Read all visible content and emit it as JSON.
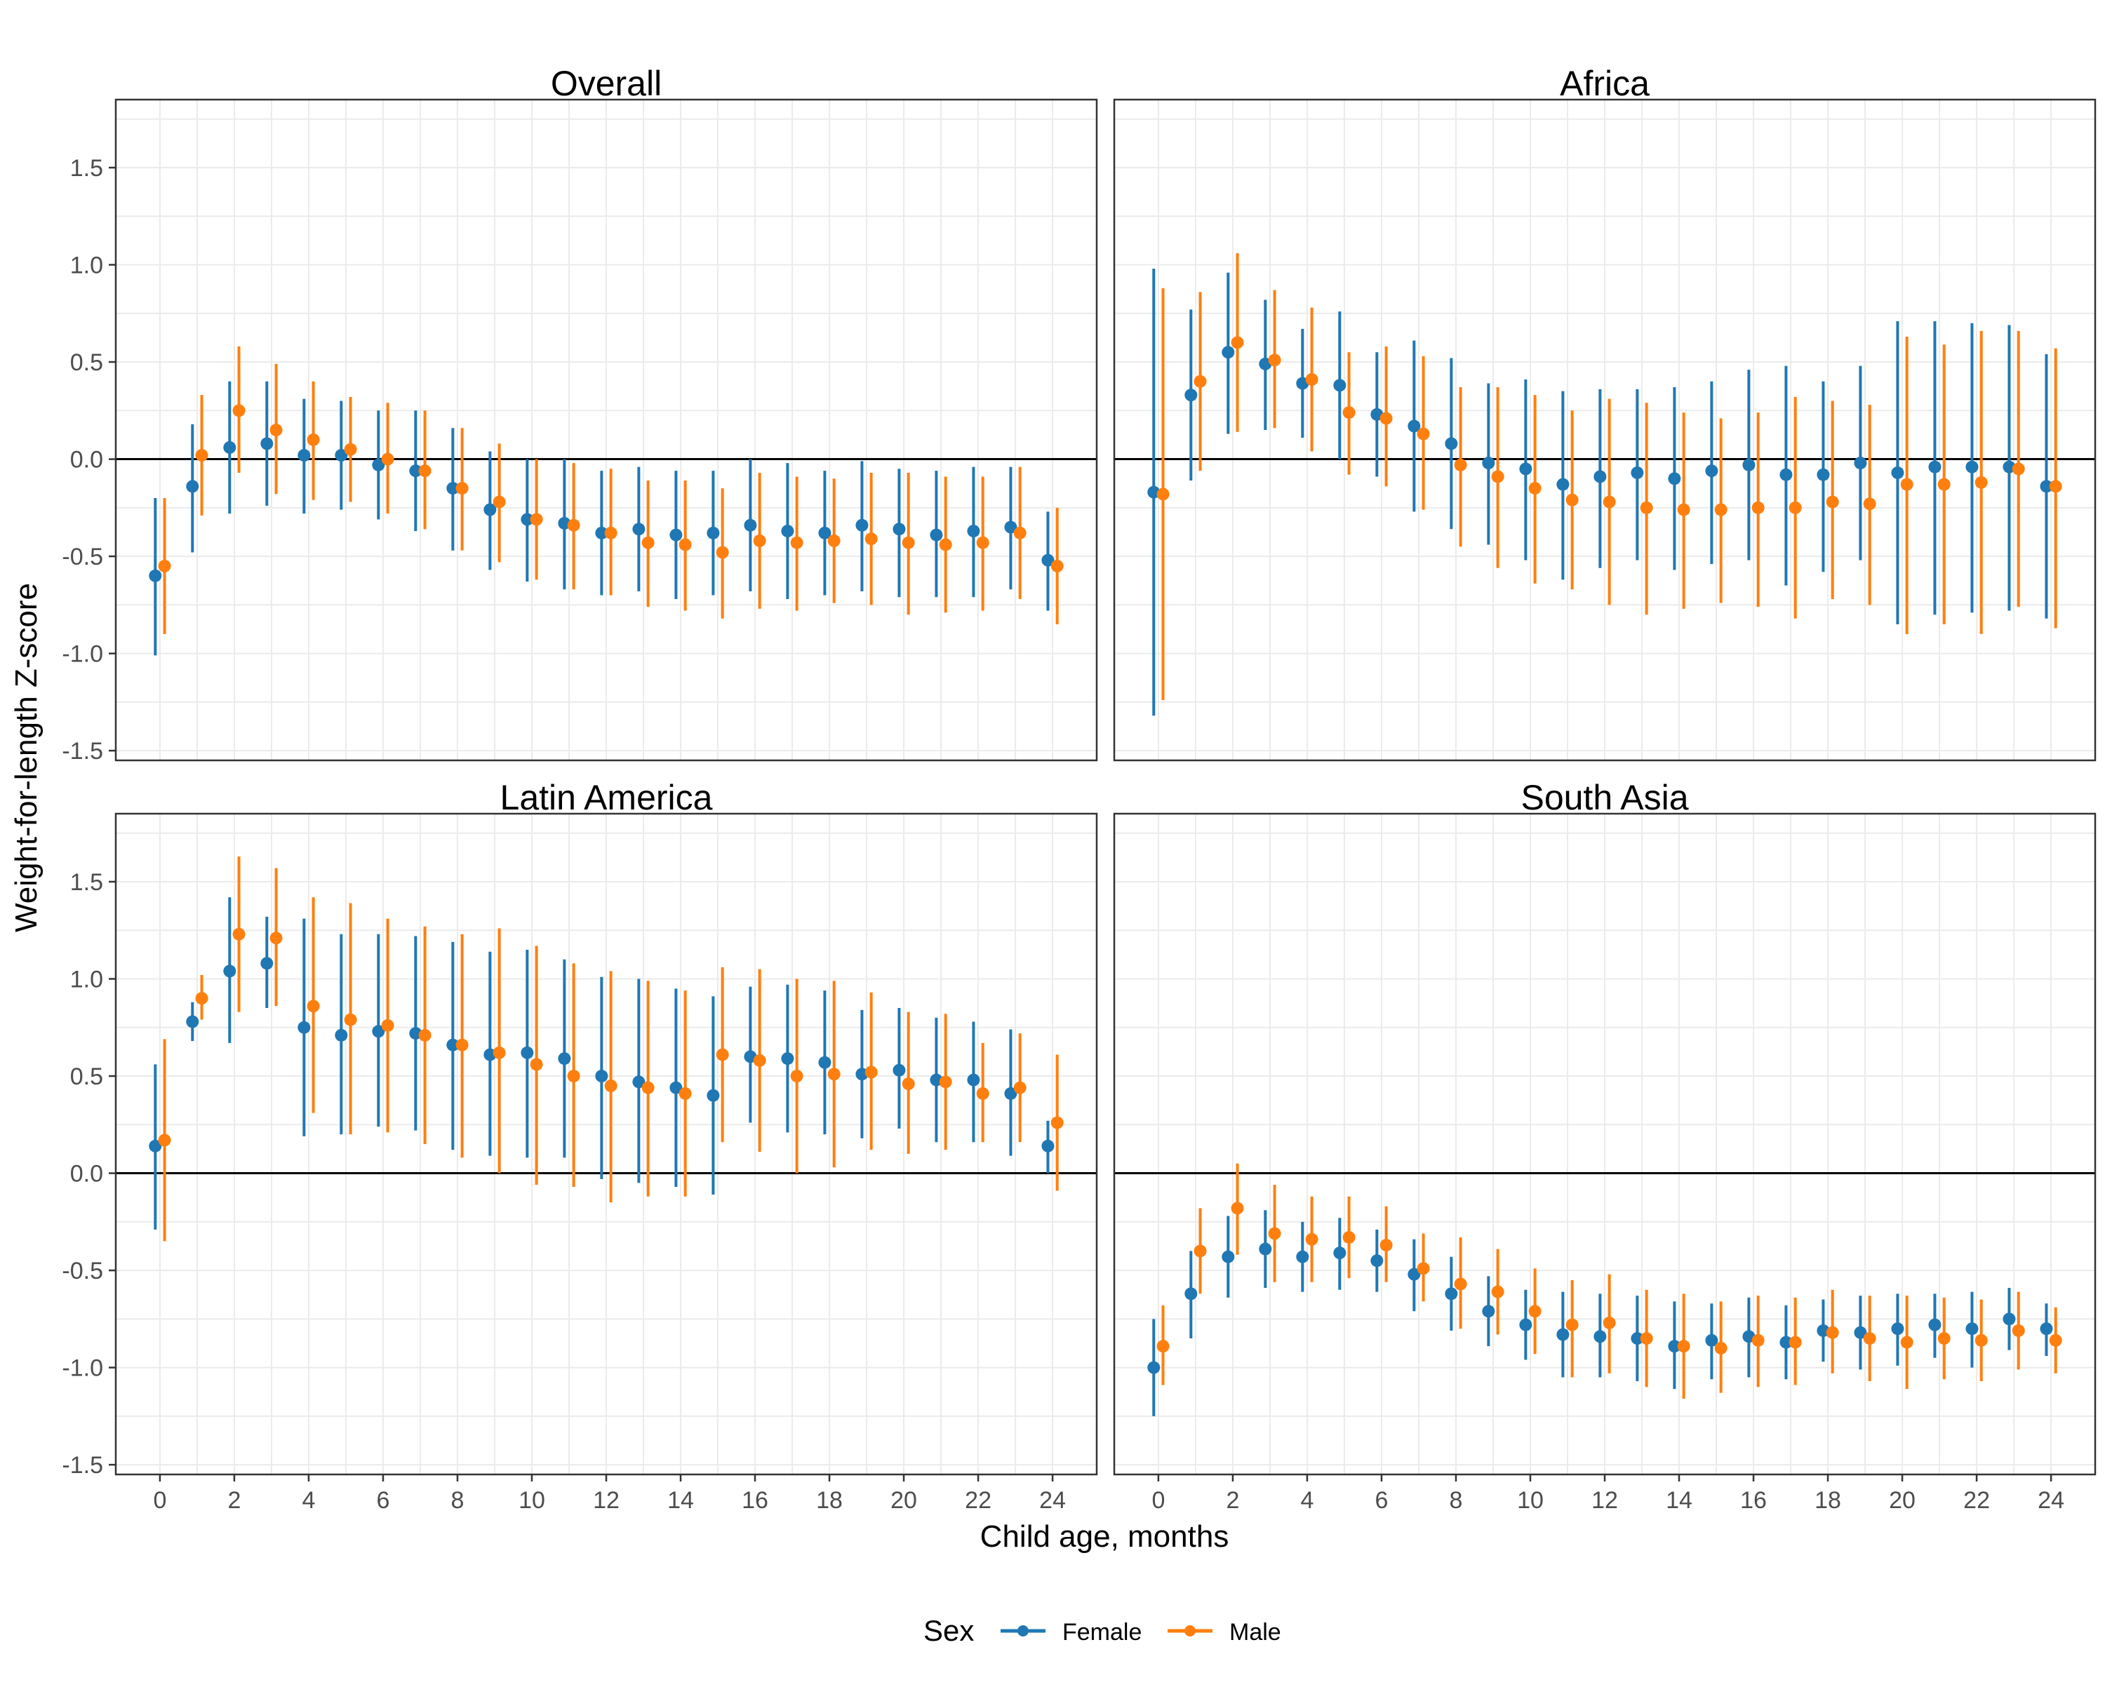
{
  "figure": {
    "ylabel": "Weight-for-length Z-score",
    "xlabel": "Child age, months",
    "legend": {
      "title": "Sex",
      "position": "bottom"
    }
  },
  "colors": {
    "female": "#1f77b4",
    "male": "#ff7f0e",
    "grid": "#ebebeb",
    "frame": "#333333",
    "zero_line": "#000000"
  },
  "chart_data": {
    "type": "scatter",
    "subtype": "point-range (estimate with interval) faceted 2x2",
    "x_label": "Child age, months",
    "y_label": "Weight-for-length Z-score",
    "xlim": [
      0,
      24
    ],
    "x_ticks": [
      0,
      2,
      4,
      6,
      8,
      10,
      12,
      14,
      16,
      18,
      20,
      22,
      24
    ],
    "y_ticks": [
      -1.5,
      -1.0,
      -0.5,
      0.0,
      0.5,
      1.0,
      1.5
    ],
    "y_tick_labels": [
      "-1.5",
      "-1.0",
      "-0.5",
      "0.0",
      "0.5",
      "1.0",
      "1.5"
    ],
    "ylim": [
      -1.55,
      1.85
    ],
    "reference_line_y": 0,
    "grid": true,
    "legend_entries": [
      "Female",
      "Male"
    ],
    "panels": [
      {
        "title": "Overall",
        "series": [
          {
            "name": "Female",
            "x": [
              0,
              1,
              2,
              3,
              4,
              5,
              6,
              7,
              8,
              9,
              10,
              11,
              12,
              13,
              14,
              15,
              16,
              17,
              18,
              19,
              20,
              21,
              22,
              23,
              24
            ],
            "y": [
              -0.6,
              -0.14,
              0.06,
              0.08,
              0.02,
              0.02,
              -0.03,
              -0.06,
              -0.15,
              -0.26,
              -0.31,
              -0.33,
              -0.38,
              -0.36,
              -0.39,
              -0.38,
              -0.34,
              -0.37,
              -0.38,
              -0.34,
              -0.36,
              -0.39,
              -0.37,
              -0.35,
              -0.52
            ],
            "lo": [
              -1.01,
              -0.48,
              -0.28,
              -0.24,
              -0.28,
              -0.26,
              -0.31,
              -0.37,
              -0.47,
              -0.57,
              -0.63,
              -0.67,
              -0.7,
              -0.68,
              -0.72,
              -0.7,
              -0.68,
              -0.72,
              -0.7,
              -0.68,
              -0.71,
              -0.71,
              -0.71,
              -0.67,
              -0.78
            ],
            "hi": [
              -0.2,
              0.18,
              0.4,
              0.4,
              0.31,
              0.3,
              0.25,
              0.25,
              0.16,
              0.04,
              0.0,
              0.0,
              -0.06,
              -0.04,
              -0.06,
              -0.06,
              0.0,
              -0.02,
              -0.06,
              -0.01,
              -0.05,
              -0.06,
              -0.04,
              -0.04,
              -0.27
            ]
          },
          {
            "name": "Male",
            "x": [
              0,
              1,
              2,
              3,
              4,
              5,
              6,
              7,
              8,
              9,
              10,
              11,
              12,
              13,
              14,
              15,
              16,
              17,
              18,
              19,
              20,
              21,
              22,
              23,
              24
            ],
            "y": [
              -0.55,
              0.02,
              0.25,
              0.15,
              0.1,
              0.05,
              0.0,
              -0.06,
              -0.15,
              -0.22,
              -0.31,
              -0.34,
              -0.38,
              -0.43,
              -0.44,
              -0.48,
              -0.42,
              -0.43,
              -0.42,
              -0.41,
              -0.43,
              -0.44,
              -0.43,
              -0.38,
              -0.55
            ],
            "lo": [
              -0.9,
              -0.29,
              -0.07,
              -0.18,
              -0.21,
              -0.22,
              -0.28,
              -0.36,
              -0.47,
              -0.53,
              -0.62,
              -0.67,
              -0.7,
              -0.76,
              -0.78,
              -0.82,
              -0.77,
              -0.78,
              -0.74,
              -0.75,
              -0.8,
              -0.79,
              -0.78,
              -0.72,
              -0.85
            ],
            "hi": [
              -0.2,
              0.33,
              0.58,
              0.49,
              0.4,
              0.32,
              0.29,
              0.25,
              0.16,
              0.08,
              0.0,
              -0.02,
              -0.05,
              -0.11,
              -0.11,
              -0.15,
              -0.07,
              -0.09,
              -0.1,
              -0.07,
              -0.07,
              -0.09,
              -0.09,
              -0.04,
              -0.25
            ]
          }
        ]
      },
      {
        "title": "Africa",
        "series": [
          {
            "name": "Female",
            "x": [
              0,
              1,
              2,
              3,
              4,
              5,
              6,
              7,
              8,
              9,
              10,
              11,
              12,
              13,
              14,
              15,
              16,
              17,
              18,
              19,
              20,
              21,
              22,
              23,
              24
            ],
            "y": [
              -0.17,
              0.33,
              0.55,
              0.49,
              0.39,
              0.38,
              0.23,
              0.17,
              0.08,
              -0.02,
              -0.05,
              -0.13,
              -0.09,
              -0.07,
              -0.1,
              -0.06,
              -0.03,
              -0.08,
              -0.08,
              -0.02,
              -0.07,
              -0.04,
              -0.04,
              -0.04,
              -0.14
            ],
            "lo": [
              -1.32,
              -0.11,
              0.13,
              0.15,
              0.11,
              0.0,
              -0.09,
              -0.27,
              -0.36,
              -0.44,
              -0.52,
              -0.62,
              -0.56,
              -0.52,
              -0.57,
              -0.54,
              -0.52,
              -0.65,
              -0.58,
              -0.52,
              -0.85,
              -0.8,
              -0.79,
              -0.78,
              -0.82
            ],
            "hi": [
              0.98,
              0.77,
              0.96,
              0.82,
              0.67,
              0.76,
              0.55,
              0.61,
              0.52,
              0.39,
              0.41,
              0.35,
              0.36,
              0.36,
              0.37,
              0.4,
              0.46,
              0.48,
              0.4,
              0.48,
              0.71,
              0.71,
              0.7,
              0.69,
              0.54
            ]
          },
          {
            "name": "Male",
            "x": [
              0,
              1,
              2,
              3,
              4,
              5,
              6,
              7,
              8,
              9,
              10,
              11,
              12,
              13,
              14,
              15,
              16,
              17,
              18,
              19,
              20,
              21,
              22,
              23,
              24
            ],
            "y": [
              -0.18,
              0.4,
              0.6,
              0.51,
              0.41,
              0.24,
              0.21,
              0.13,
              -0.03,
              -0.09,
              -0.15,
              -0.21,
              -0.22,
              -0.25,
              -0.26,
              -0.26,
              -0.25,
              -0.25,
              -0.22,
              -0.23,
              -0.13,
              -0.13,
              -0.12,
              -0.05,
              -0.14
            ],
            "lo": [
              -1.24,
              -0.06,
              0.14,
              0.16,
              0.04,
              -0.08,
              -0.14,
              -0.26,
              -0.45,
              -0.56,
              -0.64,
              -0.67,
              -0.75,
              -0.8,
              -0.77,
              -0.74,
              -0.76,
              -0.82,
              -0.72,
              -0.75,
              -0.9,
              -0.85,
              -0.9,
              -0.76,
              -0.87
            ],
            "hi": [
              0.88,
              0.86,
              1.06,
              0.87,
              0.78,
              0.55,
              0.58,
              0.53,
              0.37,
              0.37,
              0.33,
              0.25,
              0.31,
              0.29,
              0.24,
              0.21,
              0.24,
              0.32,
              0.3,
              0.28,
              0.63,
              0.59,
              0.66,
              0.66,
              0.57
            ]
          }
        ]
      },
      {
        "title": "Latin America",
        "series": [
          {
            "name": "Female",
            "x": [
              0,
              1,
              2,
              3,
              4,
              5,
              6,
              7,
              8,
              9,
              10,
              11,
              12,
              13,
              14,
              15,
              16,
              17,
              18,
              19,
              20,
              21,
              22,
              23,
              24
            ],
            "y": [
              0.14,
              0.78,
              1.04,
              1.08,
              0.75,
              0.71,
              0.73,
              0.72,
              0.66,
              0.61,
              0.62,
              0.59,
              0.5,
              0.47,
              0.44,
              0.4,
              0.6,
              0.59,
              0.57,
              0.51,
              0.53,
              0.48,
              0.48,
              0.41,
              0.14
            ],
            "lo": [
              -0.29,
              0.68,
              0.67,
              0.85,
              0.19,
              0.2,
              0.24,
              0.22,
              0.12,
              0.09,
              0.08,
              0.08,
              -0.03,
              -0.05,
              -0.07,
              -0.11,
              0.26,
              0.21,
              0.2,
              0.18,
              0.23,
              0.16,
              0.16,
              0.09,
              0.0
            ],
            "hi": [
              0.56,
              0.88,
              1.42,
              1.32,
              1.31,
              1.23,
              1.23,
              1.22,
              1.19,
              1.14,
              1.15,
              1.1,
              1.01,
              1.0,
              0.95,
              0.91,
              0.96,
              0.97,
              0.94,
              0.84,
              0.85,
              0.8,
              0.78,
              0.74,
              0.27
            ]
          },
          {
            "name": "Male",
            "x": [
              0,
              1,
              2,
              3,
              4,
              5,
              6,
              7,
              8,
              9,
              10,
              11,
              12,
              13,
              14,
              15,
              16,
              17,
              18,
              19,
              20,
              21,
              22,
              23,
              24
            ],
            "y": [
              0.17,
              0.9,
              1.23,
              1.21,
              0.86,
              0.79,
              0.76,
              0.71,
              0.66,
              0.62,
              0.56,
              0.5,
              0.45,
              0.44,
              0.41,
              0.61,
              0.58,
              0.5,
              0.51,
              0.52,
              0.46,
              0.47,
              0.41,
              0.44,
              0.26
            ],
            "lo": [
              -0.35,
              0.79,
              0.83,
              0.86,
              0.31,
              0.2,
              0.21,
              0.15,
              0.08,
              0.0,
              -0.06,
              -0.07,
              -0.15,
              -0.12,
              -0.12,
              0.16,
              0.11,
              0.0,
              0.03,
              0.12,
              0.1,
              0.12,
              0.16,
              0.16,
              -0.09
            ],
            "hi": [
              0.69,
              1.02,
              1.63,
              1.57,
              1.42,
              1.39,
              1.31,
              1.27,
              1.23,
              1.26,
              1.17,
              1.08,
              1.04,
              0.99,
              0.94,
              1.06,
              1.05,
              1.0,
              0.99,
              0.93,
              0.83,
              0.82,
              0.67,
              0.72,
              0.61
            ]
          }
        ]
      },
      {
        "title": "South Asia",
        "series": [
          {
            "name": "Female",
            "x": [
              0,
              1,
              2,
              3,
              4,
              5,
              6,
              7,
              8,
              9,
              10,
              11,
              12,
              13,
              14,
              15,
              16,
              17,
              18,
              19,
              20,
              21,
              22,
              23,
              24
            ],
            "y": [
              -1.0,
              -0.62,
              -0.43,
              -0.39,
              -0.43,
              -0.41,
              -0.45,
              -0.52,
              -0.62,
              -0.71,
              -0.78,
              -0.83,
              -0.84,
              -0.85,
              -0.89,
              -0.86,
              -0.84,
              -0.87,
              -0.81,
              -0.82,
              -0.8,
              -0.78,
              -0.8,
              -0.75,
              -0.8
            ],
            "lo": [
              -1.25,
              -0.85,
              -0.64,
              -0.59,
              -0.61,
              -0.6,
              -0.61,
              -0.71,
              -0.81,
              -0.89,
              -0.96,
              -1.05,
              -1.05,
              -1.07,
              -1.11,
              -1.06,
              -1.05,
              -1.06,
              -0.97,
              -1.01,
              -0.99,
              -0.95,
              -1.0,
              -0.91,
              -0.94
            ],
            "hi": [
              -0.75,
              -0.4,
              -0.22,
              -0.19,
              -0.25,
              -0.23,
              -0.29,
              -0.34,
              -0.43,
              -0.53,
              -0.6,
              -0.61,
              -0.62,
              -0.63,
              -0.66,
              -0.67,
              -0.64,
              -0.68,
              -0.65,
              -0.63,
              -0.62,
              -0.62,
              -0.61,
              -0.59,
              -0.67
            ]
          },
          {
            "name": "Male",
            "x": [
              0,
              1,
              2,
              3,
              4,
              5,
              6,
              7,
              8,
              9,
              10,
              11,
              12,
              13,
              14,
              15,
              16,
              17,
              18,
              19,
              20,
              21,
              22,
              23,
              24
            ],
            "y": [
              -0.89,
              -0.4,
              -0.18,
              -0.31,
              -0.34,
              -0.33,
              -0.37,
              -0.49,
              -0.57,
              -0.61,
              -0.71,
              -0.78,
              -0.77,
              -0.85,
              -0.89,
              -0.9,
              -0.86,
              -0.87,
              -0.82,
              -0.85,
              -0.87,
              -0.85,
              -0.86,
              -0.81,
              -0.86
            ],
            "lo": [
              -1.09,
              -0.62,
              -0.42,
              -0.56,
              -0.56,
              -0.54,
              -0.56,
              -0.66,
              -0.8,
              -0.83,
              -0.93,
              -1.05,
              -1.03,
              -1.1,
              -1.16,
              -1.13,
              -1.1,
              -1.09,
              -1.03,
              -1.07,
              -1.11,
              -1.06,
              -1.07,
              -1.01,
              -1.03
            ],
            "hi": [
              -0.68,
              -0.18,
              0.05,
              -0.06,
              -0.12,
              -0.12,
              -0.17,
              -0.31,
              -0.33,
              -0.39,
              -0.49,
              -0.55,
              -0.52,
              -0.6,
              -0.62,
              -0.66,
              -0.63,
              -0.64,
              -0.6,
              -0.63,
              -0.63,
              -0.64,
              -0.65,
              -0.61,
              -0.69
            ]
          }
        ]
      }
    ]
  }
}
